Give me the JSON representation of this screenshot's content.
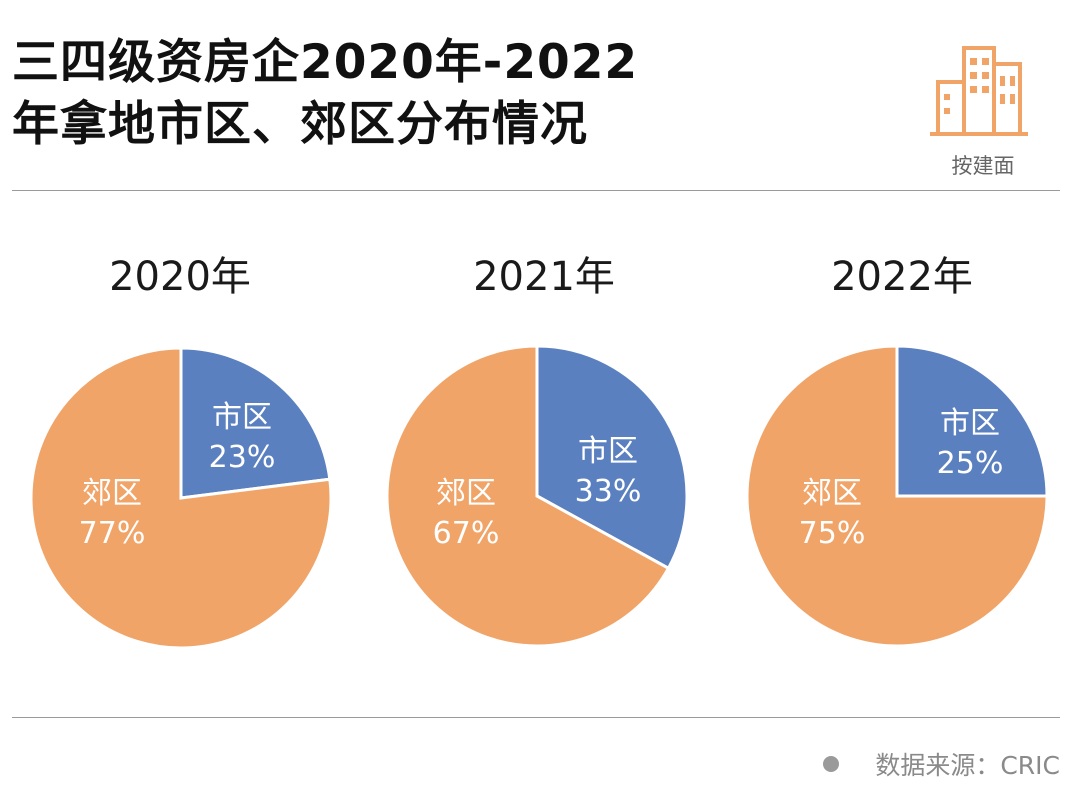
{
  "header": {
    "title_line1": "三四级资房企2020年-2022",
    "title_line2": "年拿地市区、郊区分布情况",
    "icon_caption": "按建面"
  },
  "footer": {
    "source": "数据来源：CRIC"
  },
  "colors": {
    "city": "#5B80C0",
    "suburb": "#F0A468"
  },
  "chart_data": [
    {
      "type": "pie",
      "title": "2020年",
      "categories": [
        "市区",
        "郊区"
      ],
      "values": [
        23,
        77
      ],
      "labels": [
        "23%",
        "77%"
      ]
    },
    {
      "type": "pie",
      "title": "2021年",
      "categories": [
        "市区",
        "郊区"
      ],
      "values": [
        33,
        67
      ],
      "labels": [
        "33%",
        "67%"
      ]
    },
    {
      "type": "pie",
      "title": "2022年",
      "categories": [
        "市区",
        "郊区"
      ],
      "values": [
        25,
        75
      ],
      "labels": [
        "25%",
        "75%"
      ]
    }
  ]
}
